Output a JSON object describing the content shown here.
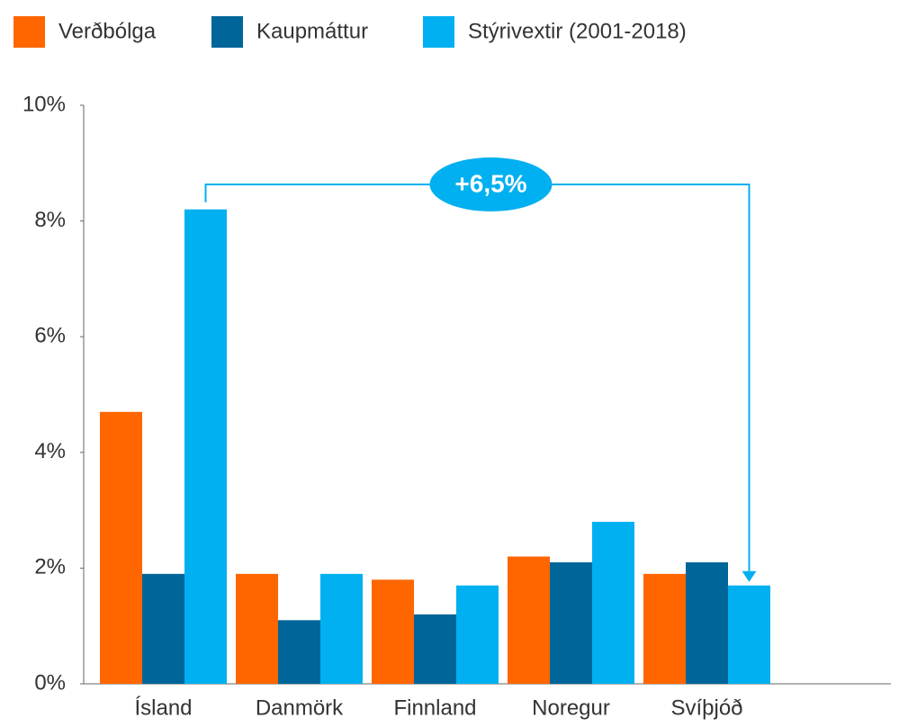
{
  "chart_data": {
    "type": "bar",
    "categories": [
      "Ísland",
      "Danmörk",
      "Finnland",
      "Noregur",
      "Svíþjóð"
    ],
    "series": [
      {
        "name": "Verðbólga",
        "color": "#ff6600",
        "values": [
          4.7,
          1.9,
          1.8,
          2.2,
          1.9
        ]
      },
      {
        "name": "Kaupmáttur",
        "color": "#006699",
        "values": [
          1.9,
          1.1,
          1.2,
          2.1,
          2.1
        ]
      },
      {
        "name": "Stýrivextir (2001-2018)",
        "color": "#00b0f0",
        "values": [
          8.2,
          1.9,
          1.7,
          2.8,
          1.7
        ]
      }
    ],
    "ylim": [
      0,
      10
    ],
    "yticks": [
      {
        "value": 0,
        "label": "0%"
      },
      {
        "value": 2,
        "label": "2%"
      },
      {
        "value": 4,
        "label": "4%"
      },
      {
        "value": 6,
        "label": "6%"
      },
      {
        "value": 8,
        "label": "8%"
      },
      {
        "value": 10,
        "label": "10%"
      }
    ],
    "grid": false,
    "legend": "top",
    "annotation": "+6,5%"
  }
}
